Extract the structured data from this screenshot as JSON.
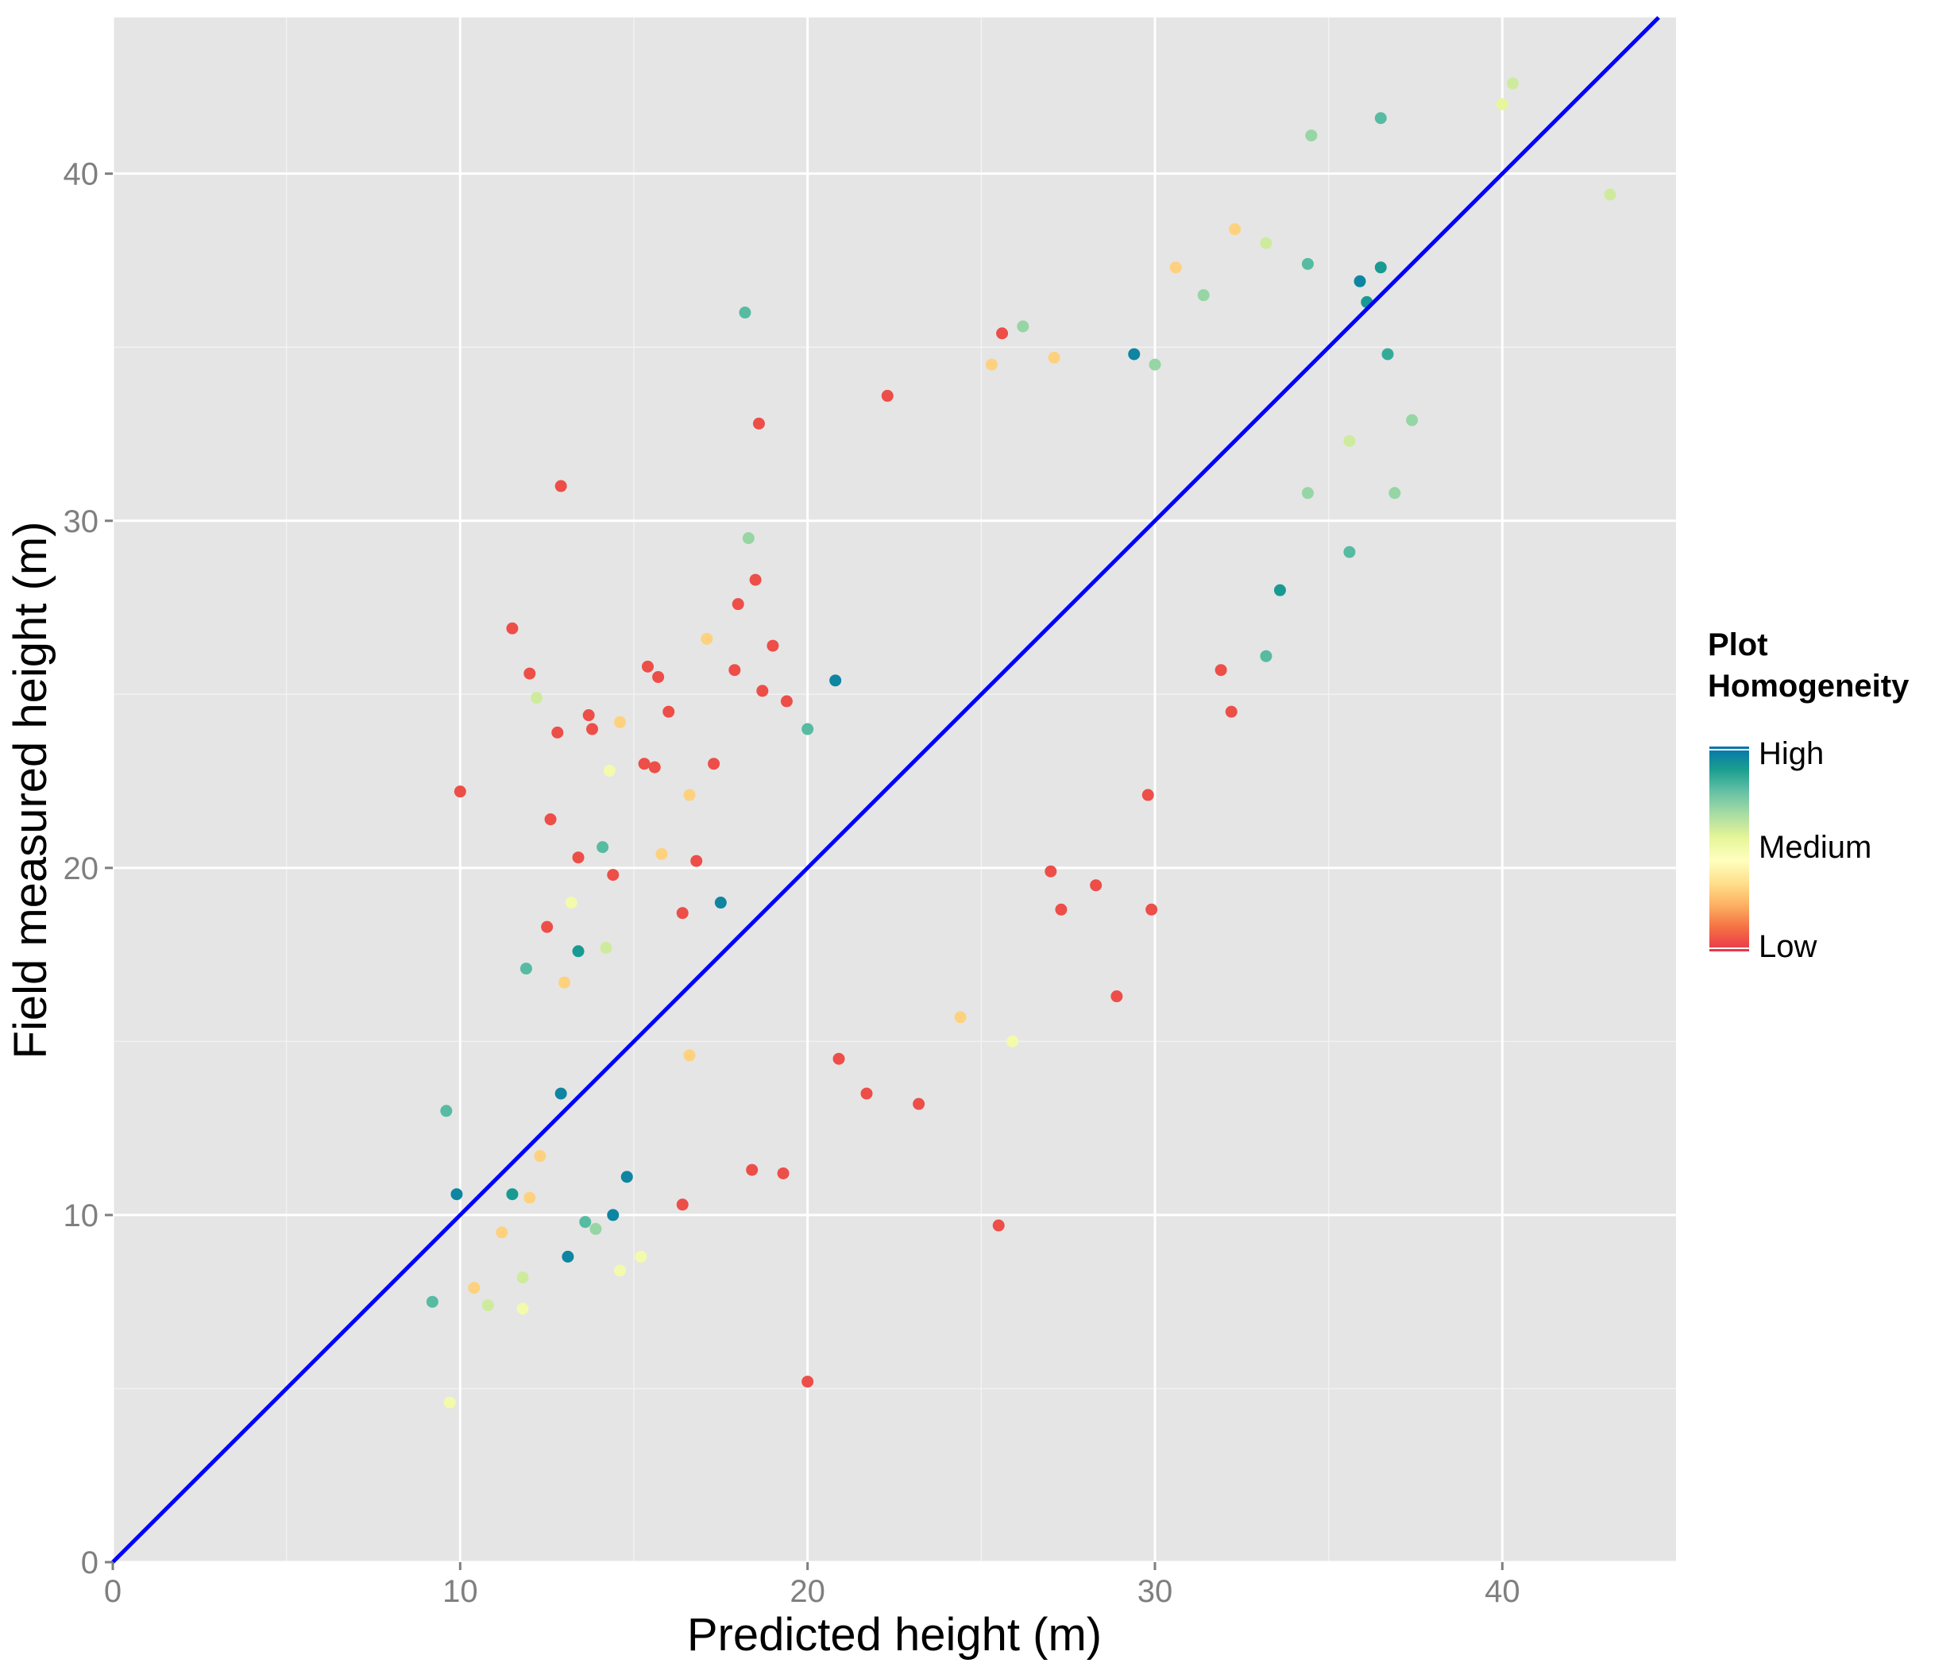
{
  "chart_data": {
    "type": "scatter",
    "title": "",
    "xlabel": "Predicted height (m)",
    "ylabel": "Field measured height (m)",
    "xlim": [
      0,
      45
    ],
    "ylim": [
      0,
      44.5
    ],
    "x_ticks": [
      0,
      10,
      20,
      30,
      40
    ],
    "y_ticks": [
      0,
      10,
      20,
      30,
      40
    ],
    "x_tick_labels": [
      "0",
      "10",
      "20",
      "30",
      "40"
    ],
    "y_tick_labels": [
      "0",
      "10",
      "20",
      "30",
      "40"
    ],
    "grid": true,
    "panel_background": "#e5e5e5",
    "grid_color": "#ffffff",
    "reference_line": {
      "name": "1:1 line",
      "slope": 1,
      "intercept": 0,
      "color": "#0000ff"
    },
    "color_scale": {
      "title_lines": [
        "Plot",
        "Homogeneity"
      ],
      "labels": [
        "High",
        "Medium",
        "Low"
      ],
      "colors_high_to_low": [
        "#0571b0",
        "#1a9e8f",
        "#66c2a5",
        "#abdda4",
        "#e6f598",
        "#ffffbf",
        "#fee08b",
        "#fdae61",
        "#f46d43",
        "#e8354c"
      ]
    },
    "legend_position": "right",
    "points": [
      [
        9.7,
        4.6,
        0.5
      ],
      [
        20.0,
        5.2,
        0.05
      ],
      [
        9.2,
        7.5,
        0.8
      ],
      [
        9.6,
        13.0,
        0.8
      ],
      [
        9.9,
        10.6,
        0.95
      ],
      [
        10.4,
        7.9,
        0.3
      ],
      [
        10.8,
        7.4,
        0.6
      ],
      [
        11.2,
        9.5,
        0.3
      ],
      [
        11.5,
        10.6,
        0.9
      ],
      [
        11.8,
        8.2,
        0.6
      ],
      [
        11.8,
        7.3,
        0.5
      ],
      [
        11.9,
        17.1,
        0.8
      ],
      [
        12.0,
        25.6,
        0.05
      ],
      [
        11.5,
        26.9,
        0.05
      ],
      [
        10.0,
        22.2,
        0.05
      ],
      [
        12.2,
        24.9,
        0.6
      ],
      [
        12.6,
        21.4,
        0.05
      ],
      [
        12.8,
        23.9,
        0.05
      ],
      [
        12.9,
        31.0,
        0.05
      ],
      [
        13.2,
        19.0,
        0.5
      ],
      [
        12.5,
        18.3,
        0.05
      ],
      [
        13.0,
        16.7,
        0.3
      ],
      [
        13.4,
        20.3,
        0.05
      ],
      [
        13.7,
        24.4,
        0.05
      ],
      [
        13.8,
        24.0,
        0.05
      ],
      [
        14.1,
        20.6,
        0.8
      ],
      [
        14.3,
        22.8,
        0.5
      ],
      [
        14.4,
        19.8,
        0.05
      ],
      [
        14.6,
        24.2,
        0.3
      ],
      [
        14.2,
        17.7,
        0.6
      ],
      [
        13.4,
        17.6,
        0.9
      ],
      [
        13.9,
        9.6,
        0.7
      ],
      [
        13.6,
        9.8,
        0.8
      ],
      [
        13.1,
        8.8,
        0.95
      ],
      [
        14.6,
        8.4,
        0.5
      ],
      [
        15.2,
        8.8,
        0.5
      ],
      [
        14.4,
        10.0,
        0.95
      ],
      [
        14.8,
        11.1,
        0.95
      ],
      [
        12.3,
        11.7,
        0.3
      ],
      [
        12.0,
        10.5,
        0.3
      ],
      [
        12.9,
        13.5,
        0.95
      ],
      [
        15.4,
        25.8,
        0.05
      ],
      [
        15.7,
        25.5,
        0.05
      ],
      [
        15.6,
        22.9,
        0.05
      ],
      [
        15.3,
        23.0,
        0.05
      ],
      [
        16.0,
        24.5,
        0.05
      ],
      [
        15.8,
        20.4,
        0.3
      ],
      [
        16.4,
        18.7,
        0.05
      ],
      [
        16.6,
        22.1,
        0.3
      ],
      [
        16.8,
        20.2,
        0.05
      ],
      [
        17.3,
        23.0,
        0.05
      ],
      [
        17.1,
        26.6,
        0.3
      ],
      [
        18.0,
        27.6,
        0.05
      ],
      [
        17.9,
        25.7,
        0.05
      ],
      [
        18.2,
        36.0,
        0.8
      ],
      [
        18.3,
        29.5,
        0.7
      ],
      [
        18.6,
        32.8,
        0.05
      ],
      [
        18.5,
        28.3,
        0.05
      ],
      [
        19.0,
        26.4,
        0.05
      ],
      [
        18.7,
        25.1,
        0.05
      ],
      [
        19.4,
        24.8,
        0.05
      ],
      [
        20.0,
        24.0,
        0.8
      ],
      [
        20.8,
        25.4,
        0.95
      ],
      [
        22.3,
        33.6,
        0.05
      ],
      [
        25.6,
        35.4,
        0.05
      ],
      [
        25.3,
        34.5,
        0.3
      ],
      [
        26.2,
        35.6,
        0.7
      ],
      [
        27.1,
        34.7,
        0.3
      ],
      [
        29.4,
        34.8,
        0.95
      ],
      [
        30.0,
        34.5,
        0.7
      ],
      [
        30.6,
        37.3,
        0.3
      ],
      [
        31.4,
        36.5,
        0.7
      ],
      [
        32.3,
        38.4,
        0.3
      ],
      [
        33.2,
        38.0,
        0.6
      ],
      [
        34.4,
        37.4,
        0.8
      ],
      [
        34.5,
        41.1,
        0.7
      ],
      [
        36.5,
        41.6,
        0.8
      ],
      [
        35.9,
        36.9,
        0.95
      ],
      [
        36.5,
        37.3,
        0.9
      ],
      [
        40.3,
        42.6,
        0.6
      ],
      [
        40.0,
        42.0,
        0.55
      ],
      [
        43.1,
        39.4,
        0.6
      ],
      [
        36.1,
        36.3,
        0.9
      ],
      [
        36.7,
        34.8,
        0.85
      ],
      [
        37.4,
        32.9,
        0.7
      ],
      [
        36.9,
        30.8,
        0.7
      ],
      [
        35.6,
        29.1,
        0.8
      ],
      [
        35.6,
        32.3,
        0.6
      ],
      [
        34.4,
        30.8,
        0.7
      ],
      [
        33.6,
        28.0,
        0.9
      ],
      [
        33.2,
        26.1,
        0.8
      ],
      [
        31.9,
        25.7,
        0.05
      ],
      [
        32.2,
        24.5,
        0.05
      ],
      [
        29.8,
        22.1,
        0.05
      ],
      [
        29.9,
        18.8,
        0.05
      ],
      [
        28.9,
        16.3,
        0.05
      ],
      [
        27.3,
        18.8,
        0.05
      ],
      [
        27.0,
        19.9,
        0.05
      ],
      [
        28.3,
        19.5,
        0.05
      ],
      [
        25.5,
        9.7,
        0.05
      ],
      [
        25.9,
        15.0,
        0.5
      ],
      [
        24.4,
        15.7,
        0.3
      ],
      [
        23.2,
        13.2,
        0.05
      ],
      [
        21.7,
        13.5,
        0.05
      ],
      [
        19.3,
        11.2,
        0.05
      ],
      [
        18.4,
        11.3,
        0.05
      ],
      [
        16.4,
        10.3,
        0.05
      ],
      [
        20.9,
        14.5,
        0.05
      ],
      [
        16.6,
        14.6,
        0.3
      ],
      [
        17.5,
        19.0,
        0.95
      ]
    ]
  }
}
